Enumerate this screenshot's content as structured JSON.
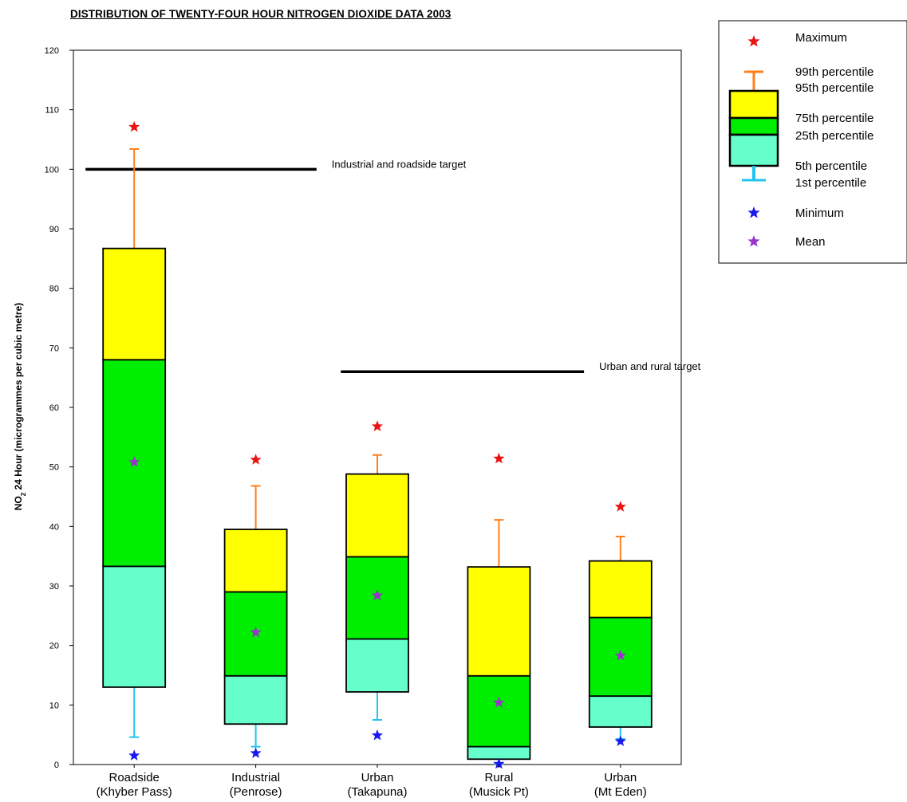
{
  "chart_data": {
    "type": "boxplot",
    "title": "DISTRIBUTION OF TWENTY-FOUR HOUR NITROGEN DIOXIDE DATA 2003",
    "ylabel": {
      "main": "NO",
      "sub": "2",
      "rest": " 24 Hour (microgrammes per cubic metre)"
    },
    "ylim": [
      0,
      120
    ],
    "yticks": [
      0,
      10,
      20,
      30,
      40,
      50,
      60,
      70,
      80,
      90,
      100,
      110,
      120
    ],
    "categories": [
      {
        "line1": "Roadside",
        "line2": "(Khyber Pass)"
      },
      {
        "line1": "Industrial",
        "line2": "(Penrose)"
      },
      {
        "line1": "Urban",
        "line2": "(Takapuna)"
      },
      {
        "line1": "Rural",
        "line2": "(Musick Pt)"
      },
      {
        "line1": "Urban",
        "line2": "(Mt Eden)"
      }
    ],
    "stats": [
      {
        "min": 1.5,
        "p1": 4.6,
        "p5": 13.0,
        "p25": 33.3,
        "p75": 68.0,
        "p95": 86.7,
        "p99": 103.4,
        "max": 107.1,
        "mean": 50.8
      },
      {
        "min": 1.9,
        "p1": 3.0,
        "p5": 6.8,
        "p25": 14.9,
        "p75": 29.0,
        "p95": 39.5,
        "p99": 46.8,
        "max": 51.2,
        "mean": 22.2
      },
      {
        "min": 4.9,
        "p1": 7.5,
        "p5": 12.2,
        "p25": 21.1,
        "p75": 34.9,
        "p95": 48.8,
        "p99": 52.0,
        "max": 56.8,
        "mean": 28.4
      },
      {
        "min": 0.1,
        "p1": 0.1,
        "p5": 0.9,
        "p25": 3.0,
        "p75": 14.9,
        "p95": 33.2,
        "p99": 41.1,
        "max": 51.4,
        "mean": 10.4
      },
      {
        "min": 3.9,
        "p1": 4.3,
        "p5": 6.3,
        "p25": 11.5,
        "p75": 24.7,
        "p95": 34.2,
        "p99": 38.3,
        "max": 43.3,
        "mean": 18.3
      }
    ],
    "reference_lines": [
      {
        "label": "Industrial and roadside target",
        "value": 100,
        "x_from": -0.4,
        "x_to": 1.5
      },
      {
        "label": "Urban and rural target",
        "value": 66,
        "x_from": 1.7,
        "x_to": 3.7
      }
    ],
    "legend_position": "top-right",
    "legend": [
      {
        "key": "max",
        "label": "Maximum"
      },
      {
        "key": "p99",
        "label": "99th percentile"
      },
      {
        "key": "p95",
        "label": "95th percentile"
      },
      {
        "key": "p75",
        "label": "75th percentile"
      },
      {
        "key": "p25",
        "label": "25th percentile"
      },
      {
        "key": "p5",
        "label": "5th percentile"
      },
      {
        "key": "p1",
        "label": "1st percentile"
      },
      {
        "key": "min",
        "label": "Minimum"
      },
      {
        "key": "mean",
        "label": "Mean"
      }
    ],
    "colors": {
      "upper_box": "#ffff00",
      "mid_box": "#00ee00",
      "lower_box": "#66ffcc",
      "upper_whisker": "#ff7f1a",
      "lower_whisker": "#22c4ee",
      "max_marker": "#ee1111",
      "min_marker": "#1a1aee",
      "mean_marker": "#9933cc",
      "target_line": "#000000"
    },
    "grid": false
  }
}
